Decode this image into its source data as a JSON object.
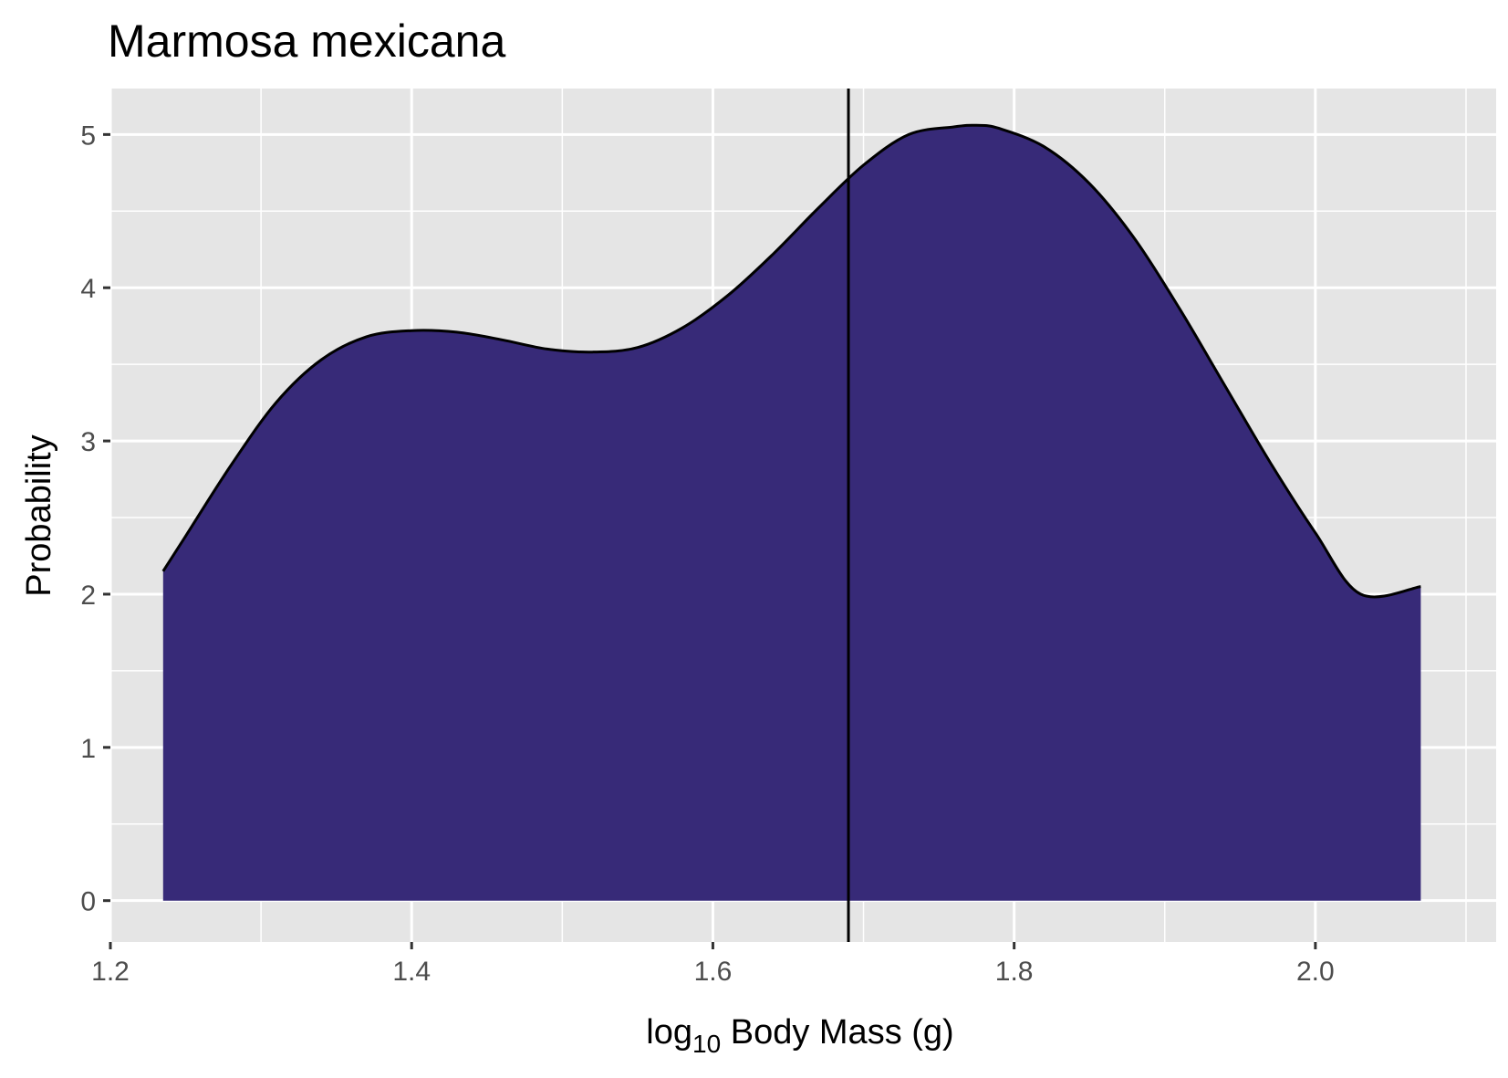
{
  "chart_data": {
    "type": "area",
    "title": "Marmosa mexicana",
    "xlabel": {
      "prefix": "log",
      "subscript": "10",
      "suffix": " Body Mass (g)"
    },
    "ylabel": "Probability",
    "xlim": [
      1.2,
      2.12
    ],
    "ylim": [
      -0.27,
      5.3
    ],
    "x_ticks": [
      1.2,
      1.4,
      1.6,
      1.8,
      2.0
    ],
    "x_tick_labels": [
      "1.2",
      "1.4",
      "1.6",
      "1.8",
      "2.0"
    ],
    "y_ticks": [
      0,
      1,
      2,
      3,
      4,
      5
    ],
    "y_tick_labels": [
      "0",
      "1",
      "2",
      "3",
      "4",
      "5"
    ],
    "grid": true,
    "legend": "none",
    "fill_color": "#372a78",
    "line_color": "#000000",
    "panel_color": "#e5e5e5",
    "vline_x": 1.69,
    "series": [
      {
        "x": [
          1.235,
          1.25,
          1.28,
          1.31,
          1.34,
          1.37,
          1.4,
          1.43,
          1.46,
          1.49,
          1.52,
          1.55,
          1.58,
          1.61,
          1.64,
          1.67,
          1.7,
          1.73,
          1.76,
          1.775,
          1.79,
          1.82,
          1.85,
          1.88,
          1.91,
          1.94,
          1.97,
          2.0,
          2.03,
          2.07
        ],
        "y": [
          2.15,
          2.38,
          2.84,
          3.25,
          3.53,
          3.68,
          3.72,
          3.71,
          3.66,
          3.6,
          3.58,
          3.61,
          3.74,
          3.95,
          4.22,
          4.52,
          4.8,
          5.0,
          5.05,
          5.06,
          5.04,
          4.92,
          4.68,
          4.32,
          3.86,
          3.36,
          2.86,
          2.4,
          2.0,
          2.05
        ]
      }
    ]
  }
}
